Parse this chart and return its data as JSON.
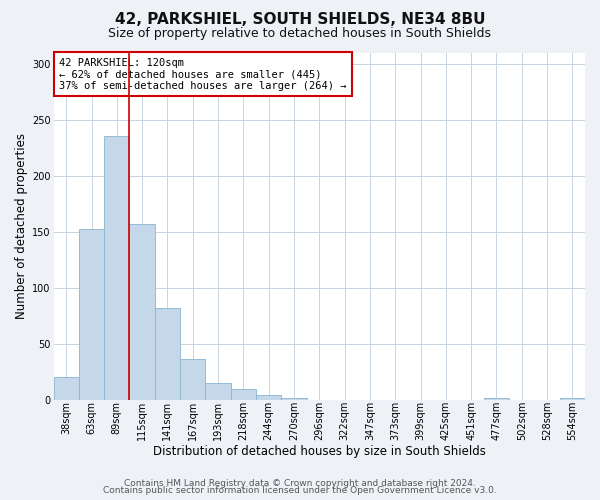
{
  "title": "42, PARKSHIEL, SOUTH SHIELDS, NE34 8BU",
  "subtitle": "Size of property relative to detached houses in South Shields",
  "xlabel": "Distribution of detached houses by size in South Shields",
  "ylabel": "Number of detached properties",
  "footer_line1": "Contains HM Land Registry data © Crown copyright and database right 2024.",
  "footer_line2": "Contains public sector information licensed under the Open Government Licence v3.0.",
  "bin_labels": [
    "38sqm",
    "63sqm",
    "89sqm",
    "115sqm",
    "141sqm",
    "167sqm",
    "193sqm",
    "218sqm",
    "244sqm",
    "270sqm",
    "296sqm",
    "322sqm",
    "347sqm",
    "373sqm",
    "399sqm",
    "425sqm",
    "451sqm",
    "477sqm",
    "502sqm",
    "528sqm",
    "554sqm"
  ],
  "bar_heights": [
    20,
    152,
    235,
    157,
    82,
    36,
    15,
    9,
    4,
    1,
    0,
    0,
    0,
    0,
    0,
    0,
    0,
    1,
    0,
    0,
    1
  ],
  "bar_color": "#c5d8ea",
  "bar_edgecolor": "#8ab4d0",
  "vline_color": "#cc0000",
  "annotation_title": "42 PARKSHIEL: 120sqm",
  "annotation_line2": "← 62% of detached houses are smaller (445)",
  "annotation_line3": "37% of semi-detached houses are larger (264) →",
  "annotation_box_edgecolor": "#cc0000",
  "ylim": [
    0,
    310
  ],
  "yticks": [
    0,
    50,
    100,
    150,
    200,
    250,
    300
  ],
  "background_color": "#eef2f7",
  "plot_background": "#ffffff",
  "grid_color": "#c8d4e0",
  "title_fontsize": 11,
  "subtitle_fontsize": 9,
  "axis_label_fontsize": 8.5,
  "tick_fontsize": 7,
  "annotation_fontsize": 7.5,
  "footer_fontsize": 6.5
}
